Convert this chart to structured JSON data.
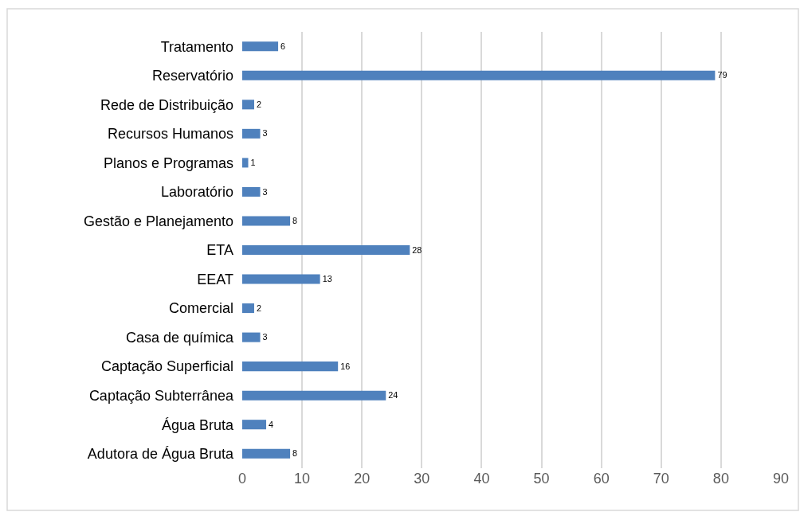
{
  "chart_data": {
    "type": "bar",
    "orientation": "horizontal",
    "categories": [
      "Tratamento",
      "Reservatório",
      "Rede de Distribuição",
      "Recursos Humanos",
      "Planos e Programas",
      "Laboratório",
      "Gestão e Planejamento",
      "ETA",
      "EEAT",
      "Comercial",
      "Casa de química",
      "Captação Superficial",
      "Captação Subterrânea",
      "Água Bruta",
      "Adutora de Água Bruta"
    ],
    "values": [
      6,
      79,
      2,
      3,
      1,
      3,
      8,
      28,
      13,
      2,
      3,
      16,
      24,
      4,
      8
    ],
    "color": "#4f81bd",
    "xlim": [
      0,
      90
    ],
    "xticks": [
      0,
      10,
      20,
      30,
      40,
      50,
      60,
      70,
      80,
      90
    ],
    "grid": "x",
    "data_labels": true
  }
}
